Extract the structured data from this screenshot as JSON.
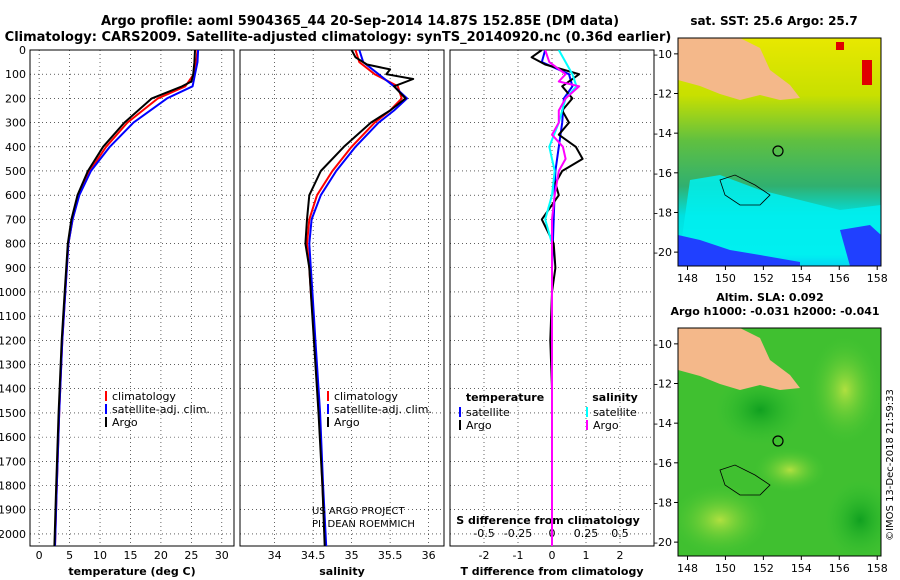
{
  "header": {
    "title_line1": "Argo profile: aoml 5904365_44 20-Sep-2014 14.87S 152.85E (DM data)",
    "title_line2": "Climatology: CARS2009. Satellite-adjusted climatology: synTS_20140920.nc (0.36d earlier)"
  },
  "colors": {
    "climatology": "#ff0000",
    "satellite": "#0000ff",
    "argo": "#000000",
    "diff_temp_sat": "#0000ff",
    "diff_sal_sat": "#00ffff",
    "diff_sal_argo": "#ff00ff"
  },
  "chart_data": [
    {
      "type": "line",
      "xlabel": "temperature (deg C)",
      "ylabel": "",
      "xlim": [
        -1.5,
        32
      ],
      "ylim": [
        2050,
        0
      ],
      "xticks": [
        "0",
        "5",
        "10",
        "15",
        "20",
        "25",
        "30"
      ],
      "yticks": [
        "0",
        "100",
        "200",
        "300",
        "400",
        "500",
        "600",
        "700",
        "800",
        "900",
        "1000",
        "1100",
        "1200",
        "1300",
        "1400",
        "1500",
        "1600",
        "1700",
        "1800",
        "1900",
        "2000"
      ],
      "legend": [
        "climatology",
        "satellite-adj. clim.",
        "Argo"
      ],
      "series": [
        {
          "name": "climatology",
          "depth": [
            0,
            50,
            100,
            150,
            200,
            300,
            400,
            500,
            600,
            700,
            800,
            1000,
            1200,
            1500,
            1800,
            2050
          ],
          "values": [
            26,
            25.8,
            25.4,
            24,
            19.5,
            14.5,
            11,
            8.3,
            6.5,
            5.5,
            4.8,
            4.3,
            3.8,
            3.3,
            2.9,
            2.6
          ]
        },
        {
          "name": "satellite-adj. clim.",
          "depth": [
            0,
            50,
            100,
            150,
            200,
            300,
            400,
            500,
            600,
            700,
            800,
            1000,
            1200,
            1500,
            1800,
            2050
          ],
          "values": [
            26.1,
            26,
            25.6,
            25.2,
            21,
            15.5,
            11.6,
            8.5,
            6.6,
            5.5,
            4.8,
            4.3,
            3.8,
            3.3,
            2.9,
            2.6
          ]
        },
        {
          "name": "Argo",
          "depth": [
            0,
            50,
            100,
            130,
            150,
            200,
            300,
            400,
            500,
            600,
            700,
            800,
            1000,
            1200,
            1500,
            1800,
            2050
          ],
          "values": [
            25.6,
            25.5,
            25.3,
            25,
            23.5,
            18.5,
            14,
            10.5,
            8,
            6.3,
            5.3,
            4.7,
            4.2,
            3.7,
            3.2,
            2.8,
            2.5
          ]
        }
      ]
    },
    {
      "type": "line",
      "xlabel": "salinity",
      "xlim": [
        33.55,
        36.2
      ],
      "ylim": [
        2050,
        0
      ],
      "xticks": [
        "34",
        "34.5",
        "35",
        "35.5",
        "36"
      ],
      "legend": [
        "climatology",
        "satellite-adj. clim.",
        "Argo"
      ],
      "annotations": [
        "US ARGO PROJECT",
        "PI: DEAN ROEMMICH"
      ],
      "series": [
        {
          "name": "climatology",
          "depth": [
            0,
            50,
            100,
            150,
            200,
            250,
            300,
            400,
            500,
            600,
            700,
            800,
            900,
            1000,
            1200,
            1500,
            1800,
            2050
          ],
          "values": [
            35.05,
            35.1,
            35.3,
            35.6,
            35.65,
            35.5,
            35.3,
            35.0,
            34.75,
            34.55,
            34.45,
            34.42,
            34.45,
            34.47,
            34.52,
            34.58,
            34.62,
            34.66
          ]
        },
        {
          "name": "satellite-adj. clim.",
          "depth": [
            0,
            50,
            100,
            150,
            200,
            250,
            300,
            400,
            500,
            600,
            700,
            800,
            900,
            1000,
            1200,
            1500,
            1800,
            2050
          ],
          "values": [
            35.1,
            35.15,
            35.35,
            35.55,
            35.72,
            35.55,
            35.35,
            35.05,
            34.8,
            34.6,
            34.48,
            34.45,
            34.47,
            34.49,
            34.53,
            34.59,
            34.63,
            34.67
          ]
        },
        {
          "name": "Argo",
          "depth": [
            0,
            30,
            60,
            80,
            100,
            120,
            150,
            200,
            250,
            300,
            400,
            500,
            600,
            700,
            800,
            900,
            1000,
            1200,
            1500,
            1800,
            2050
          ],
          "values": [
            35.0,
            35.05,
            35.2,
            35.5,
            35.45,
            35.8,
            35.55,
            35.7,
            35.5,
            35.25,
            34.9,
            34.6,
            34.45,
            34.42,
            34.4,
            34.45,
            34.47,
            34.51,
            34.57,
            34.62,
            34.65
          ]
        }
      ]
    },
    {
      "type": "line",
      "xlabel": "T difference from climatology",
      "xlabel_top": "S difference from climatology",
      "xlim": [
        -3,
        3
      ],
      "ylim": [
        2050,
        0
      ],
      "xticks": [
        "-2",
        "-1",
        "0",
        "1",
        "2"
      ],
      "xticks_top": [
        "-0.5",
        "-0.25",
        "0",
        "0.25",
        "0.5"
      ],
      "legend_left_title": "temperature",
      "legend_right_title": "salinity",
      "legend_left": [
        "satellite",
        "Argo"
      ],
      "legend_right": [
        "satellite",
        "Argo"
      ],
      "series": [
        {
          "name": "temperature satellite",
          "depth": [
            0,
            50,
            100,
            150,
            200,
            300,
            400,
            500,
            700,
            900,
            1100,
            1400,
            1700,
            2050
          ],
          "values": [
            -0.2,
            -0.3,
            0.5,
            0.6,
            0.35,
            0.3,
            0.2,
            0.1,
            0.05,
            0,
            0,
            0,
            0,
            0
          ]
        },
        {
          "name": "temperature Argo",
          "depth": [
            0,
            30,
            60,
            100,
            150,
            200,
            250,
            300,
            350,
            400,
            450,
            500,
            550,
            600,
            700,
            800,
            900,
            1000,
            1200,
            1400,
            1600,
            1800,
            2050
          ],
          "values": [
            -0.3,
            -0.6,
            -0.2,
            0.8,
            0.3,
            0.6,
            0.3,
            0.5,
            0.2,
            0.7,
            0.9,
            0.3,
            0.1,
            0.2,
            -0.3,
            0.05,
            0.1,
            0.0,
            -0.05,
            0,
            0,
            0,
            0
          ]
        },
        {
          "name": "salinity satellite",
          "depth": [
            0,
            50,
            100,
            150,
            200,
            300,
            400,
            500,
            600,
            700,
            800,
            900,
            1000,
            1200,
            1500,
            2050
          ],
          "values": [
            0.05,
            0.1,
            0.15,
            0.18,
            0.1,
            0.05,
            -0.02,
            0.02,
            0.0,
            -0.05,
            0.0,
            0.0,
            0.0,
            0.0,
            0.0,
            0.0
          ]
        },
        {
          "name": "salinity Argo",
          "depth": [
            0,
            50,
            100,
            130,
            150,
            200,
            250,
            300,
            350,
            400,
            450,
            500,
            600,
            700,
            800,
            900,
            1000,
            1200,
            1500,
            2050
          ],
          "values": [
            -0.05,
            -0.02,
            0.1,
            0.05,
            0.2,
            0.1,
            0.05,
            0.05,
            0.0,
            0.08,
            0.1,
            0.05,
            0.02,
            0.0,
            0.0,
            0.0,
            0.0,
            0.0,
            0.0,
            0.0
          ]
        }
      ]
    }
  ],
  "maps": {
    "sst_title": "sat. SST: 25.6 Argo: 25.7",
    "sla_title": "Altim. SLA: 0.092",
    "sla_subtitle": "Argo h1000: -0.031 h2000: -0.041",
    "lat_ticks": [
      "-10",
      "-12",
      "-14",
      "-16",
      "-18",
      "-20"
    ],
    "lon_ticks": [
      "148",
      "150",
      "152",
      "154",
      "156",
      "158"
    ],
    "lon_range": [
      147.5,
      158.2
    ],
    "lat_range": [
      -20.7,
      -9.2
    ],
    "profile_lon": 152.85,
    "profile_lat": -14.87
  },
  "footer": {
    "stamp": "©IMOS 13-Dec-2018 21:59:33"
  }
}
